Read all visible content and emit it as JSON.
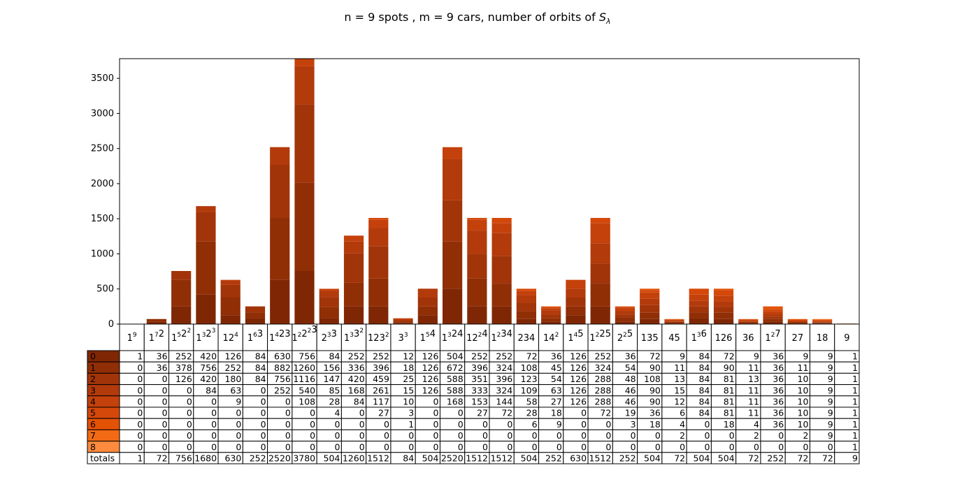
{
  "chart_data": {
    "type": "bar",
    "stacked": true,
    "title_prefix": "n = 9 spots , m = 9 cars, number of orbits of ",
    "title_symbol": "S",
    "title_subscript": "λ",
    "ylim": [
      0,
      3780
    ],
    "yticks": [
      0,
      500,
      1000,
      1500,
      2000,
      2500,
      3000,
      3500
    ],
    "categories": [
      [
        [
          "1",
          "9"
        ]
      ],
      [
        [
          "1",
          "7"
        ],
        [
          "2",
          ""
        ]
      ],
      [
        [
          "1",
          "5"
        ],
        [
          "2",
          "2"
        ]
      ],
      [
        [
          "1",
          "3"
        ],
        [
          "2",
          "3"
        ]
      ],
      [
        [
          "1",
          ""
        ],
        [
          "2",
          "4"
        ]
      ],
      [
        [
          "1",
          "6"
        ],
        [
          "3",
          ""
        ]
      ],
      [
        [
          "1",
          "4"
        ],
        [
          "2",
          ""
        ],
        [
          "3",
          ""
        ]
      ],
      [
        [
          "1",
          "2"
        ],
        [
          "2",
          "2"
        ],
        [
          "3",
          ""
        ]
      ],
      [
        [
          "2",
          "3"
        ],
        [
          "3",
          ""
        ]
      ],
      [
        [
          "1",
          "3"
        ],
        [
          "3",
          "2"
        ]
      ],
      [
        [
          "1",
          ""
        ],
        [
          "2",
          ""
        ],
        [
          "3",
          "2"
        ]
      ],
      [
        [
          "3",
          "3"
        ]
      ],
      [
        [
          "1",
          "5"
        ],
        [
          "4",
          ""
        ]
      ],
      [
        [
          "1",
          "3"
        ],
        [
          "2",
          ""
        ],
        [
          "4",
          ""
        ]
      ],
      [
        [
          "1",
          ""
        ],
        [
          "2",
          "2"
        ],
        [
          "4",
          ""
        ]
      ],
      [
        [
          "1",
          "2"
        ],
        [
          "3",
          ""
        ],
        [
          "4",
          ""
        ]
      ],
      [
        [
          "2",
          ""
        ],
        [
          "3",
          ""
        ],
        [
          "4",
          ""
        ]
      ],
      [
        [
          "1",
          ""
        ],
        [
          "4",
          "2"
        ]
      ],
      [
        [
          "1",
          "4"
        ],
        [
          "5",
          ""
        ]
      ],
      [
        [
          "1",
          "2"
        ],
        [
          "2",
          ""
        ],
        [
          "5",
          ""
        ]
      ],
      [
        [
          "2",
          "2"
        ],
        [
          "5",
          ""
        ]
      ],
      [
        [
          "1",
          ""
        ],
        [
          "3",
          ""
        ],
        [
          "5",
          ""
        ]
      ],
      [
        [
          "4",
          ""
        ],
        [
          "5",
          ""
        ]
      ],
      [
        [
          "1",
          "3"
        ],
        [
          "6",
          ""
        ]
      ],
      [
        [
          "1",
          ""
        ],
        [
          "2",
          ""
        ],
        [
          "6",
          ""
        ]
      ],
      [
        [
          "3",
          ""
        ],
        [
          "6",
          ""
        ]
      ],
      [
        [
          "1",
          "2"
        ],
        [
          "7",
          ""
        ]
      ],
      [
        [
          "2",
          ""
        ],
        [
          "7",
          ""
        ]
      ],
      [
        [
          "1",
          ""
        ],
        [
          "8",
          ""
        ]
      ],
      [
        [
          "9",
          ""
        ]
      ]
    ],
    "series": [
      {
        "name": "0",
        "color": "#7f2704",
        "values": [
          1,
          36,
          252,
          420,
          126,
          84,
          630,
          756,
          84,
          252,
          252,
          12,
          126,
          504,
          252,
          252,
          72,
          36,
          126,
          252,
          36,
          72,
          9,
          84,
          72,
          9,
          36,
          9,
          9,
          1
        ]
      },
      {
        "name": "1",
        "color": "#902e06",
        "values": [
          0,
          36,
          378,
          756,
          252,
          84,
          882,
          1260,
          156,
          336,
          396,
          18,
          126,
          672,
          396,
          324,
          108,
          45,
          126,
          324,
          54,
          90,
          11,
          84,
          90,
          11,
          36,
          11,
          9,
          1
        ]
      },
      {
        "name": "2",
        "color": "#a13409",
        "values": [
          0,
          0,
          126,
          420,
          180,
          84,
          756,
          1116,
          147,
          420,
          459,
          25,
          126,
          588,
          351,
          396,
          123,
          54,
          126,
          288,
          48,
          108,
          13,
          84,
          81,
          13,
          36,
          10,
          9,
          1
        ]
      },
      {
        "name": "3",
        "color": "#b33a0b",
        "values": [
          0,
          0,
          0,
          84,
          63,
          0,
          252,
          540,
          85,
          168,
          261,
          15,
          126,
          588,
          333,
          324,
          109,
          63,
          126,
          288,
          46,
          90,
          15,
          84,
          81,
          11,
          36,
          10,
          9,
          1
        ]
      },
      {
        "name": "4",
        "color": "#c4410c",
        "values": [
          0,
          0,
          0,
          0,
          9,
          0,
          0,
          108,
          28,
          84,
          117,
          10,
          0,
          168,
          153,
          144,
          58,
          27,
          126,
          288,
          46,
          90,
          12,
          84,
          81,
          11,
          36,
          10,
          9,
          1
        ]
      },
      {
        "name": "5",
        "color": "#d4480a",
        "values": [
          0,
          0,
          0,
          0,
          0,
          0,
          0,
          0,
          4,
          0,
          27,
          3,
          0,
          0,
          27,
          72,
          28,
          18,
          0,
          72,
          19,
          36,
          6,
          84,
          81,
          11,
          36,
          10,
          9,
          1
        ]
      },
      {
        "name": "6",
        "color": "#e45206",
        "values": [
          0,
          0,
          0,
          0,
          0,
          0,
          0,
          0,
          0,
          0,
          0,
          1,
          0,
          0,
          0,
          0,
          6,
          9,
          0,
          0,
          3,
          18,
          4,
          0,
          18,
          4,
          36,
          10,
          9,
          1
        ]
      },
      {
        "name": "7",
        "color": "#f26a16",
        "values": [
          0,
          0,
          0,
          0,
          0,
          0,
          0,
          0,
          0,
          0,
          0,
          0,
          0,
          0,
          0,
          0,
          0,
          0,
          0,
          0,
          0,
          0,
          2,
          0,
          0,
          2,
          0,
          2,
          9,
          1
        ]
      },
      {
        "name": "8",
        "color": "#fd8a3d",
        "values": [
          0,
          0,
          0,
          0,
          0,
          0,
          0,
          0,
          0,
          0,
          0,
          0,
          0,
          0,
          0,
          0,
          0,
          0,
          0,
          0,
          0,
          0,
          0,
          0,
          0,
          0,
          0,
          0,
          0,
          1
        ]
      }
    ],
    "totals_label": "totals",
    "totals": [
      1,
      72,
      756,
      1680,
      630,
      252,
      2520,
      3780,
      504,
      1260,
      1512,
      84,
      504,
      2520,
      1512,
      1512,
      504,
      252,
      630,
      1512,
      252,
      504,
      72,
      504,
      504,
      72,
      252,
      72,
      72,
      9
    ]
  }
}
